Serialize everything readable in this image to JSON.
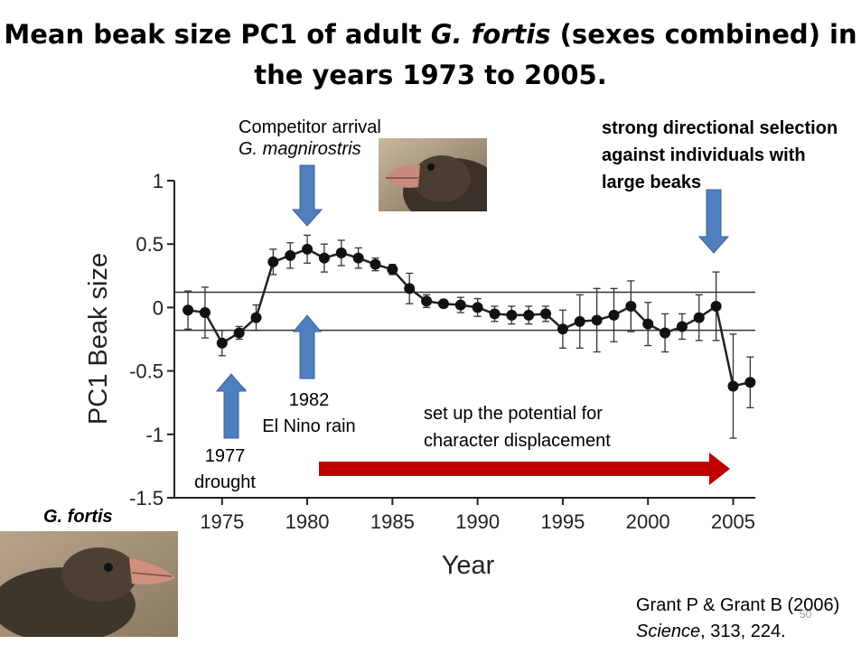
{
  "slide": {
    "title_part1": "Mean beak size PC1 of adult ",
    "title_species": "G. fortis",
    "title_part2": " (sexes combined) in",
    "title_line2": "the years 1973 to 2005.",
    "page_number": "50"
  },
  "annotations": {
    "competitor_line1": "Competitor arrival",
    "competitor_line2": "G. magnirostris",
    "selection_line1": "strong directional selection",
    "selection_line2": "against individuals with",
    "selection_line3": "large beaks",
    "drought_year": "1977",
    "drought_label": "drought",
    "elnino_year": "1982",
    "elnino_label": "El Nino rain",
    "potential_line1": "set up the potential for",
    "potential_line2": "character displacement",
    "fortis_label": "G. fortis",
    "citation_line1": "Grant P & Grant B (2006)",
    "citation_journal": "Science",
    "citation_rest": ", 313, 224."
  },
  "colors": {
    "arrow_blue": "#4f7fbf",
    "arrow_blue_edge": "#3a6296",
    "arrow_red": "#c00000"
  },
  "chart_data": {
    "type": "line",
    "xlabel": "Year",
    "ylabel": "PC1 Beak size",
    "xlim": [
      1972.2,
      2006.3
    ],
    "ylim": [
      -1.5,
      1
    ],
    "xticks": [
      1975,
      1980,
      1985,
      1990,
      1995,
      2000,
      2005
    ],
    "yticks": [
      1,
      0.5,
      0,
      -0.5,
      -1,
      -1.5
    ],
    "ytick_labels": [
      "1",
      "0.5",
      "0",
      "-0.5",
      "-1",
      "-1.5"
    ],
    "reference_lines": [
      0.12,
      -0.18
    ],
    "x": [
      1973,
      1974,
      1975,
      1976,
      1977,
      1978,
      1979,
      1980,
      1981,
      1982,
      1983,
      1984,
      1985,
      1986,
      1987,
      1988,
      1989,
      1990,
      1991,
      1992,
      1993,
      1994,
      1995,
      1996,
      1997,
      1998,
      1999,
      2000,
      2001,
      2002,
      2003,
      2004,
      2005,
      2006
    ],
    "y": [
      -0.02,
      -0.04,
      -0.28,
      -0.2,
      -0.08,
      0.36,
      0.41,
      0.46,
      0.39,
      0.43,
      0.39,
      0.34,
      0.3,
      0.15,
      0.05,
      0.03,
      0.02,
      0.0,
      -0.05,
      -0.06,
      -0.06,
      -0.05,
      -0.17,
      -0.11,
      -0.1,
      -0.06,
      0.01,
      -0.13,
      -0.2,
      -0.15,
      -0.08,
      0.01,
      -0.62,
      -0.59
    ],
    "err": [
      0.15,
      0.2,
      0.1,
      0.05,
      0.1,
      0.1,
      0.1,
      0.11,
      0.11,
      0.1,
      0.08,
      0.05,
      0.04,
      0.12,
      0.05,
      0.03,
      0.06,
      0.07,
      0.06,
      0.07,
      0.07,
      0.06,
      0.15,
      0.21,
      0.25,
      0.21,
      0.2,
      0.17,
      0.15,
      0.1,
      0.18,
      0.27,
      0.41,
      0.2
    ]
  }
}
